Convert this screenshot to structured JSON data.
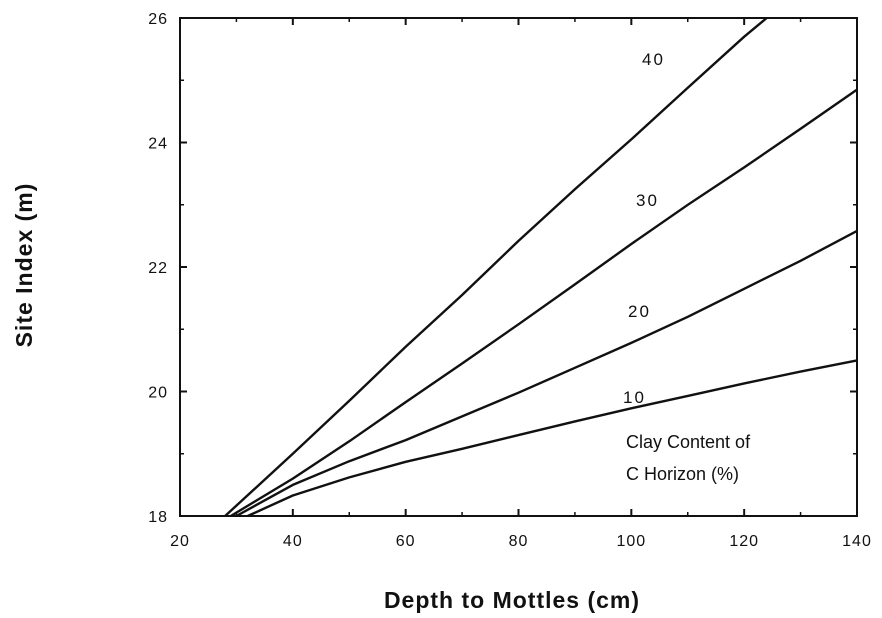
{
  "chart_data": {
    "type": "line",
    "xlabel": "Depth to Mottles (cm)",
    "ylabel": "Site Index (m)",
    "xlim": [
      20,
      140
    ],
    "ylim": [
      18,
      26
    ],
    "xticks": [
      20,
      40,
      60,
      80,
      100,
      120,
      140
    ],
    "yticks": [
      18,
      20,
      22,
      24,
      26
    ],
    "grid": false,
    "annotation": [
      "Clay Content of",
      "C Horizon (%)"
    ],
    "series": [
      {
        "name": "10",
        "x": [
          32,
          40,
          50,
          60,
          70,
          80,
          90,
          100,
          110,
          120,
          130,
          140
        ],
        "y": [
          18.0,
          18.33,
          18.62,
          18.87,
          19.08,
          19.3,
          19.52,
          19.73,
          19.93,
          20.13,
          20.32,
          20.5
        ]
      },
      {
        "name": "20",
        "x": [
          30,
          40,
          50,
          60,
          70,
          80,
          90,
          100,
          110,
          120,
          130,
          140
        ],
        "y": [
          18.0,
          18.5,
          18.88,
          19.22,
          19.6,
          19.98,
          20.38,
          20.78,
          21.2,
          21.65,
          22.1,
          22.58
        ]
      },
      {
        "name": "30",
        "x": [
          29,
          40,
          50,
          60,
          70,
          80,
          90,
          100,
          110,
          120,
          130,
          140
        ],
        "y": [
          18.0,
          18.6,
          19.2,
          19.83,
          20.45,
          21.08,
          21.72,
          22.37,
          23.0,
          23.6,
          24.22,
          24.85
        ]
      },
      {
        "name": "40",
        "x": [
          28,
          40,
          50,
          60,
          70,
          80,
          90,
          100,
          110,
          120,
          124
        ],
        "y": [
          18.0,
          19.0,
          19.85,
          20.72,
          21.55,
          22.42,
          23.25,
          24.05,
          24.88,
          25.7,
          26.0
        ]
      }
    ]
  }
}
